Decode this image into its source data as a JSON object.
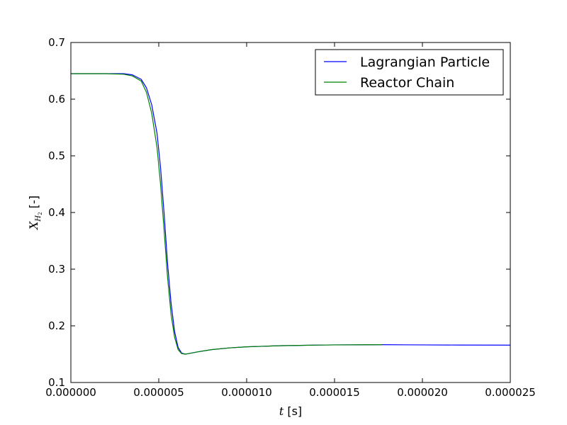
{
  "chart_data": {
    "type": "line",
    "title": "",
    "xlabel_var": "t",
    "xlabel_unit": " [s]",
    "ylabel_var": "X",
    "ylabel_sub": "H",
    "ylabel_subsub": "2",
    "ylabel_unit": " [-]",
    "xlim": [
      0,
      2.5e-05
    ],
    "ylim": [
      0.1,
      0.7
    ],
    "x_ticks": [
      0,
      5e-06,
      1e-05,
      1.5e-05,
      2e-05,
      2.5e-05
    ],
    "x_tick_labels": [
      "0.000000",
      "0.000005",
      "0.000010",
      "0.000015",
      "0.000020",
      "0.000025"
    ],
    "y_ticks": [
      0.1,
      0.2,
      0.3,
      0.4,
      0.5,
      0.6,
      0.7
    ],
    "y_tick_labels": [
      "0.1",
      "0.2",
      "0.3",
      "0.4",
      "0.5",
      "0.6",
      "0.7"
    ],
    "grid": false,
    "legend_position": "top-right",
    "series": [
      {
        "name": "Lagrangian Particle",
        "color": "#0000ff",
        "x": [
          0,
          2e-06,
          3e-06,
          3.5e-06,
          4e-06,
          4.3e-06,
          4.6e-06,
          4.9e-06,
          5.1e-06,
          5.3e-06,
          5.5e-06,
          5.7e-06,
          5.9e-06,
          6.1e-06,
          6.3e-06,
          6.5e-06,
          6.7e-06,
          7.2e-06,
          8e-06,
          9e-06,
          1e-05,
          1.1e-05,
          1.2e-05,
          1.3e-05,
          1.4e-05,
          1.5e-05,
          1.6e-05,
          1.77e-05,
          1.9e-05,
          2e-05,
          2.2e-05,
          2.5e-05
        ],
        "y": [
          0.645,
          0.645,
          0.645,
          0.643,
          0.635,
          0.62,
          0.59,
          0.54,
          0.48,
          0.4,
          0.31,
          0.24,
          0.19,
          0.162,
          0.152,
          0.15,
          0.151,
          0.154,
          0.158,
          0.161,
          0.163,
          0.164,
          0.165,
          0.1655,
          0.166,
          0.1663,
          0.1665,
          0.1667,
          0.1665,
          0.1663,
          0.1661,
          0.1659
        ]
      },
      {
        "name": "Reactor Chain",
        "color": "#008000",
        "x": [
          0,
          2e-06,
          3e-06,
          3.5e-06,
          4e-06,
          4.3e-06,
          4.6e-06,
          4.9e-06,
          5.1e-06,
          5.3e-06,
          5.5e-06,
          5.7e-06,
          5.9e-06,
          6.1e-06,
          6.3e-06,
          6.5e-06,
          6.7e-06,
          7.2e-06,
          8e-06,
          9e-06,
          1e-05,
          1.1e-05,
          1.2e-05,
          1.3e-05,
          1.4e-05,
          1.5e-05,
          1.6e-05,
          1.77e-05
        ],
        "y": [
          0.645,
          0.645,
          0.644,
          0.641,
          0.632,
          0.612,
          0.575,
          0.515,
          0.45,
          0.37,
          0.285,
          0.22,
          0.18,
          0.158,
          0.151,
          0.15,
          0.151,
          0.154,
          0.158,
          0.161,
          0.163,
          0.164,
          0.165,
          0.1655,
          0.166,
          0.1663,
          0.1665,
          0.1667
        ]
      }
    ]
  }
}
